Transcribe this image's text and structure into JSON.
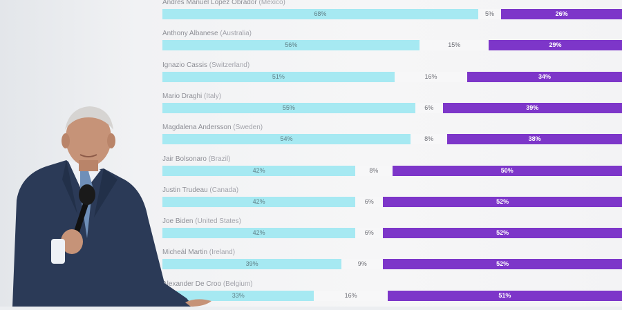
{
  "colors": {
    "approve": "#a6e9f2",
    "disapprove": "#7d36c9",
    "background": "#f3f3f5"
  },
  "rows": [
    {
      "name": "Andrés Manuel López Obrador",
      "country": "(Mexico)",
      "approve": 68,
      "unsure": 5,
      "disapprove": 26,
      "approve_label": "68%",
      "unsure_label": "5%",
      "disapprove_label": "26%"
    },
    {
      "name": "Anthony Albanese",
      "country": "(Australia)",
      "approve": 56,
      "unsure": 15,
      "disapprove": 29,
      "approve_label": "56%",
      "unsure_label": "15%",
      "disapprove_label": "29%"
    },
    {
      "name": "Ignazio Cassis",
      "country": "(Switzerland)",
      "approve": 51,
      "unsure": 16,
      "disapprove": 34,
      "approve_label": "51%",
      "unsure_label": "16%",
      "disapprove_label": "34%"
    },
    {
      "name": "Mario Draghi",
      "country": "(Italy)",
      "approve": 55,
      "unsure": 6,
      "disapprove": 39,
      "approve_label": "55%",
      "unsure_label": "6%",
      "disapprove_label": "39%"
    },
    {
      "name": "Magdalena Andersson",
      "country": "(Sweden)",
      "approve": 54,
      "unsure": 8,
      "disapprove": 38,
      "approve_label": "54%",
      "unsure_label": "8%",
      "disapprove_label": "38%"
    },
    {
      "name": "Jair Bolsonaro",
      "country": "(Brazil)",
      "approve": 42,
      "unsure": 8,
      "disapprove": 50,
      "approve_label": "42%",
      "unsure_label": "8%",
      "disapprove_label": "50%"
    },
    {
      "name": "Justin Trudeau",
      "country": "(Canada)",
      "approve": 42,
      "unsure": 6,
      "disapprove": 52,
      "approve_label": "42%",
      "unsure_label": "6%",
      "disapprove_label": "52%"
    },
    {
      "name": "Joe Biden",
      "country": "(United States)",
      "approve": 42,
      "unsure": 6,
      "disapprove": 52,
      "approve_label": "42%",
      "unsure_label": "6%",
      "disapprove_label": "52%"
    },
    {
      "name": "Micheál Martin",
      "country": "(Ireland)",
      "approve": 39,
      "unsure": 9,
      "disapprove": 52,
      "approve_label": "39%",
      "unsure_label": "9%",
      "disapprove_label": "52%"
    },
    {
      "name": "Alexander De Croo",
      "country": "(Belgium)",
      "approve": 33,
      "unsure": 16,
      "disapprove": 51,
      "approve_label": "33%",
      "unsure_label": "16%",
      "disapprove_label": "51%"
    }
  ]
}
